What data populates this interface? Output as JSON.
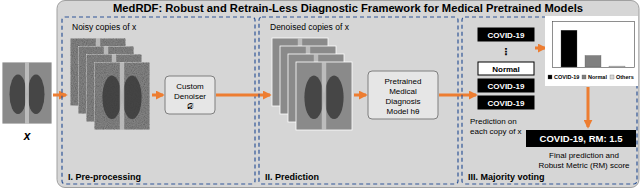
{
  "title": "MedRDF: Robust and Retrain-Less Diagnostic Framework for Medical Pretrained Models",
  "input": {
    "label": "x"
  },
  "stages": [
    {
      "label": "I. Pre-processing",
      "images_label": "Noisy copies of x",
      "module_lines": [
        "Custom",
        "Denoiser",
        "𝒟"
      ]
    },
    {
      "label": "II. Prediction",
      "images_label": "Denoised copies of x",
      "module_lines": [
        "Pretrained",
        "Medical",
        "Diagnosis",
        "Model hθ"
      ]
    },
    {
      "label": "III. Majority voting",
      "predictions": [
        "COVID-19",
        "⋮",
        "Normal",
        "COVID-19",
        "COVID-19"
      ],
      "predictions_caption_lines": [
        "Prediction on",
        "each copy of x"
      ],
      "final": "COVID-19, RM: 1.5",
      "final_caption_lines": [
        "Final prediction and",
        "Robust Metric (RM) score"
      ]
    }
  ],
  "chart_data": {
    "type": "bar",
    "categories": [
      "COVID-19",
      "Normal",
      "Others"
    ],
    "values": [
      0.8,
      0.25,
      0.02
    ],
    "colors": [
      "#000000",
      "#808080",
      "#d9d9d9"
    ],
    "ylim": [
      0,
      1
    ],
    "tick_labels": false,
    "legend": "bottom"
  }
}
